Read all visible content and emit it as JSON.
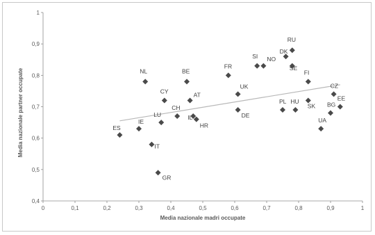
{
  "chart_data": {
    "type": "scatter",
    "xlabel": "Media nazionale madri occupate",
    "ylabel": "Media nazionale partner occupate",
    "xlim": [
      0,
      1
    ],
    "ylim": [
      0.4,
      1
    ],
    "xticks": [
      "0",
      "0,1",
      "0,2",
      "0,3",
      "0,4",
      "0,5",
      "0,6",
      "0,7",
      "0,8",
      "0,9",
      "1"
    ],
    "yticks": [
      "0,4",
      "0,5",
      "0,6",
      "0,7",
      "0,8",
      "0,9",
      "1"
    ],
    "grid": false,
    "marker_color": "#4a4a4a",
    "trendline": {
      "x": [
        0.24,
        0.93
      ],
      "y": [
        0.655,
        0.77
      ],
      "color": "#b8b8b8"
    },
    "points": [
      {
        "label": "ES",
        "x": 0.24,
        "y": 0.61
      },
      {
        "label": "IE",
        "x": 0.3,
        "y": 0.63
      },
      {
        "label": "NL",
        "x": 0.32,
        "y": 0.78
      },
      {
        "label": "IT",
        "x": 0.34,
        "y": 0.58
      },
      {
        "label": "GR",
        "x": 0.36,
        "y": 0.49
      },
      {
        "label": "LU",
        "x": 0.37,
        "y": 0.65
      },
      {
        "label": "CY",
        "x": 0.38,
        "y": 0.72
      },
      {
        "label": "CH",
        "x": 0.42,
        "y": 0.67
      },
      {
        "label": "BE",
        "x": 0.45,
        "y": 0.78
      },
      {
        "label": "AT",
        "x": 0.46,
        "y": 0.72
      },
      {
        "label": "IL",
        "x": 0.47,
        "y": 0.67
      },
      {
        "label": "HR",
        "x": 0.48,
        "y": 0.66
      },
      {
        "label": "FR",
        "x": 0.58,
        "y": 0.8
      },
      {
        "label": "UK",
        "x": 0.61,
        "y": 0.74
      },
      {
        "label": "DE",
        "x": 0.61,
        "y": 0.69
      },
      {
        "label": "SI",
        "x": 0.67,
        "y": 0.83
      },
      {
        "label": "NO",
        "x": 0.69,
        "y": 0.83
      },
      {
        "label": "PL",
        "x": 0.75,
        "y": 0.69
      },
      {
        "label": "DK",
        "x": 0.76,
        "y": 0.86
      },
      {
        "label": "RU",
        "x": 0.78,
        "y": 0.88
      },
      {
        "label": "SE",
        "x": 0.78,
        "y": 0.83
      },
      {
        "label": "HU",
        "x": 0.79,
        "y": 0.69
      },
      {
        "label": "FI",
        "x": 0.83,
        "y": 0.78
      },
      {
        "label": "SK",
        "x": 0.83,
        "y": 0.72
      },
      {
        "label": "UA",
        "x": 0.87,
        "y": 0.63
      },
      {
        "label": "BG",
        "x": 0.9,
        "y": 0.68
      },
      {
        "label": "CZ",
        "x": 0.91,
        "y": 0.74
      },
      {
        "label": "EE",
        "x": 0.93,
        "y": 0.7
      }
    ]
  }
}
